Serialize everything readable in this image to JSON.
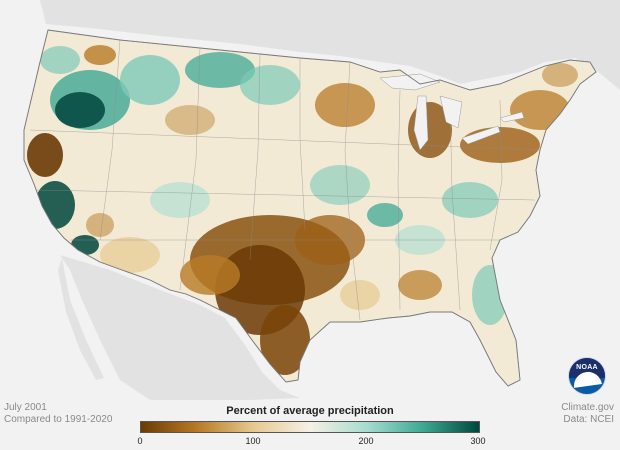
{
  "footer": {
    "date": "July 2001",
    "baseline": "Compared to 1991-2020",
    "source_site": "Climate.gov",
    "source_data": "Data: NCEI"
  },
  "legend": {
    "title": "Percent of average precipitation",
    "ticks": [
      "0",
      "100",
      "200",
      "300"
    ],
    "colors": {
      "driest": "#6b3a05",
      "dry": "#b87a26",
      "slightly_dry": "#e6c98f",
      "average": "#f5f0e4",
      "slightly_wet": "#a7dccf",
      "wet": "#3fa894",
      "wettest": "#00473d"
    }
  },
  "logo": {
    "text": "NOAA"
  },
  "map": {
    "region": "Contiguous United States",
    "ocean_color": "#f2f2f2",
    "neighbor_land_color": "#e2e2e2",
    "water_color": "#f2f2f2"
  }
}
